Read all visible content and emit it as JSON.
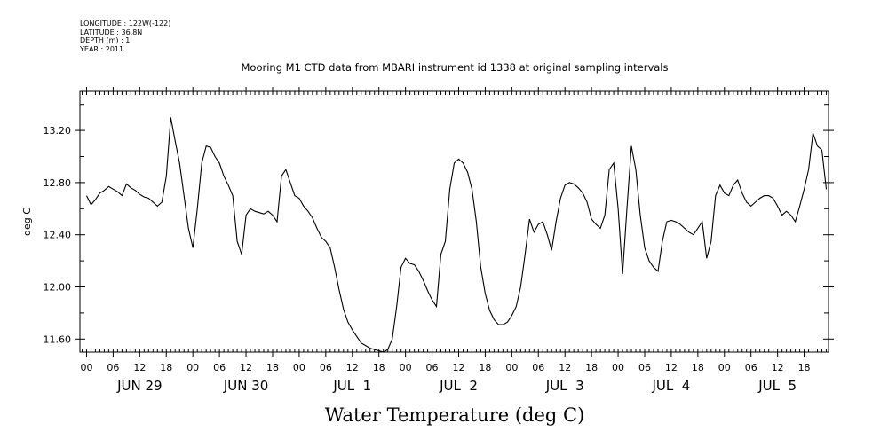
{
  "metadata": [
    "LONGITUDE : 122W(-122)",
    "LATITUDE : 36.8N",
    "DEPTH (m) : 1",
    "YEAR : 2011"
  ],
  "chart_data": {
    "type": "line",
    "title": "Mooring M1 CTD data from MBARI instrument id 1338 at original sampling intervals",
    "xlabel": "Water Temperature (deg C)",
    "ylabel": "deg C",
    "xlim_hours": [
      -1.5,
      167.5
    ],
    "ylim": [
      11.5,
      13.5
    ],
    "yticks": [
      11.6,
      12.0,
      12.4,
      12.8,
      13.2
    ],
    "ytick_labels": [
      "11.60",
      "12.00",
      "12.40",
      "12.80",
      "13.20"
    ],
    "hour_tick_labels": [
      "00",
      "06",
      "12",
      "18",
      "00",
      "06",
      "12",
      "18",
      "00",
      "06",
      "12",
      "18",
      "00",
      "06",
      "12",
      "18",
      "00",
      "06",
      "12",
      "18",
      "00",
      "06",
      "12",
      "18",
      "00",
      "06",
      "12",
      "18"
    ],
    "day_labels": [
      "JUN 29",
      "JUN 30",
      "JUL  1",
      "JUL  2",
      "JUL  3",
      "JUL  4",
      "JUL  5"
    ],
    "series": [
      {
        "points": [
          [
            0,
            12.7
          ],
          [
            1,
            12.63
          ],
          [
            2,
            12.67
          ],
          [
            3,
            12.72
          ],
          [
            4,
            12.74
          ],
          [
            5,
            12.77
          ],
          [
            6,
            12.75
          ],
          [
            7,
            12.73
          ],
          [
            8,
            12.7
          ],
          [
            9,
            12.79
          ],
          [
            10,
            12.76
          ],
          [
            11,
            12.74
          ],
          [
            12,
            12.71
          ],
          [
            13,
            12.69
          ],
          [
            14,
            12.68
          ],
          [
            15,
            12.65
          ],
          [
            16,
            12.62
          ],
          [
            17,
            12.65
          ],
          [
            18,
            12.85
          ],
          [
            19,
            13.3
          ],
          [
            20,
            13.12
          ],
          [
            21,
            12.95
          ],
          [
            22,
            12.7
          ],
          [
            23,
            12.45
          ],
          [
            24,
            12.3
          ],
          [
            25,
            12.6
          ],
          [
            26,
            12.95
          ],
          [
            27,
            13.08
          ],
          [
            28,
            13.07
          ],
          [
            29,
            13.0
          ],
          [
            30,
            12.95
          ],
          [
            31,
            12.85
          ],
          [
            32,
            12.78
          ],
          [
            33,
            12.7
          ],
          [
            34,
            12.35
          ],
          [
            35,
            12.25
          ],
          [
            36,
            12.55
          ],
          [
            37,
            12.6
          ],
          [
            38,
            12.58
          ],
          [
            39,
            12.57
          ],
          [
            40,
            12.56
          ],
          [
            41,
            12.58
          ],
          [
            42,
            12.55
          ],
          [
            43,
            12.5
          ],
          [
            44,
            12.85
          ],
          [
            45,
            12.9
          ],
          [
            46,
            12.8
          ],
          [
            47,
            12.7
          ],
          [
            48,
            12.68
          ],
          [
            49,
            12.62
          ],
          [
            50,
            12.58
          ],
          [
            51,
            12.53
          ],
          [
            52,
            12.45
          ],
          [
            53,
            12.38
          ],
          [
            54,
            12.35
          ],
          [
            55,
            12.3
          ],
          [
            56,
            12.15
          ],
          [
            57,
            11.98
          ],
          [
            58,
            11.83
          ],
          [
            59,
            11.73
          ],
          [
            60,
            11.67
          ],
          [
            61,
            11.62
          ],
          [
            62,
            11.57
          ],
          [
            63,
            11.55
          ],
          [
            64,
            11.53
          ],
          [
            65,
            11.52
          ],
          [
            66,
            11.51
          ],
          [
            67,
            11.5
          ],
          [
            68,
            11.52
          ],
          [
            69,
            11.6
          ],
          [
            70,
            11.85
          ],
          [
            71,
            12.15
          ],
          [
            72,
            12.22
          ],
          [
            73,
            12.18
          ],
          [
            74,
            12.17
          ],
          [
            75,
            12.12
          ],
          [
            76,
            12.05
          ],
          [
            77,
            11.97
          ],
          [
            78,
            11.9
          ],
          [
            79,
            11.85
          ],
          [
            80,
            12.25
          ],
          [
            81,
            12.35
          ],
          [
            82,
            12.75
          ],
          [
            83,
            12.95
          ],
          [
            84,
            12.98
          ],
          [
            85,
            12.95
          ],
          [
            86,
            12.88
          ],
          [
            87,
            12.75
          ],
          [
            88,
            12.5
          ],
          [
            89,
            12.15
          ],
          [
            90,
            11.95
          ],
          [
            91,
            11.82
          ],
          [
            92,
            11.75
          ],
          [
            93,
            11.71
          ],
          [
            94,
            11.71
          ],
          [
            95,
            11.73
          ],
          [
            96,
            11.78
          ],
          [
            97,
            11.85
          ],
          [
            98,
            12.0
          ],
          [
            99,
            12.25
          ],
          [
            100,
            12.52
          ],
          [
            101,
            12.42
          ],
          [
            102,
            12.48
          ],
          [
            103,
            12.5
          ],
          [
            104,
            12.4
          ],
          [
            105,
            12.28
          ],
          [
            106,
            12.5
          ],
          [
            107,
            12.68
          ],
          [
            108,
            12.78
          ],
          [
            109,
            12.8
          ],
          [
            110,
            12.79
          ],
          [
            111,
            12.76
          ],
          [
            112,
            12.72
          ],
          [
            113,
            12.65
          ],
          [
            114,
            12.52
          ],
          [
            115,
            12.48
          ],
          [
            116,
            12.45
          ],
          [
            117,
            12.55
          ],
          [
            118,
            12.9
          ],
          [
            119,
            12.95
          ],
          [
            120,
            12.6
          ],
          [
            121,
            12.1
          ],
          [
            122,
            12.6
          ],
          [
            123,
            13.08
          ],
          [
            124,
            12.9
          ],
          [
            125,
            12.55
          ],
          [
            126,
            12.3
          ],
          [
            127,
            12.2
          ],
          [
            128,
            12.15
          ],
          [
            129,
            12.12
          ],
          [
            130,
            12.35
          ],
          [
            131,
            12.5
          ],
          [
            132,
            12.51
          ],
          [
            133,
            12.5
          ],
          [
            134,
            12.48
          ],
          [
            135,
            12.45
          ],
          [
            136,
            12.42
          ],
          [
            137,
            12.4
          ],
          [
            138,
            12.45
          ],
          [
            139,
            12.5
          ],
          [
            140,
            12.22
          ],
          [
            141,
            12.35
          ],
          [
            142,
            12.7
          ],
          [
            143,
            12.78
          ],
          [
            144,
            12.72
          ],
          [
            145,
            12.7
          ],
          [
            146,
            12.78
          ],
          [
            147,
            12.82
          ],
          [
            148,
            12.72
          ],
          [
            149,
            12.65
          ],
          [
            150,
            12.62
          ],
          [
            151,
            12.65
          ],
          [
            152,
            12.68
          ],
          [
            153,
            12.7
          ],
          [
            154,
            12.7
          ],
          [
            155,
            12.68
          ],
          [
            156,
            12.62
          ],
          [
            157,
            12.55
          ],
          [
            158,
            12.58
          ],
          [
            159,
            12.55
          ],
          [
            160,
            12.5
          ],
          [
            161,
            12.62
          ],
          [
            162,
            12.75
          ],
          [
            163,
            12.9
          ],
          [
            164,
            13.18
          ],
          [
            165,
            13.08
          ],
          [
            166,
            13.05
          ],
          [
            167,
            12.75
          ]
        ]
      }
    ]
  }
}
